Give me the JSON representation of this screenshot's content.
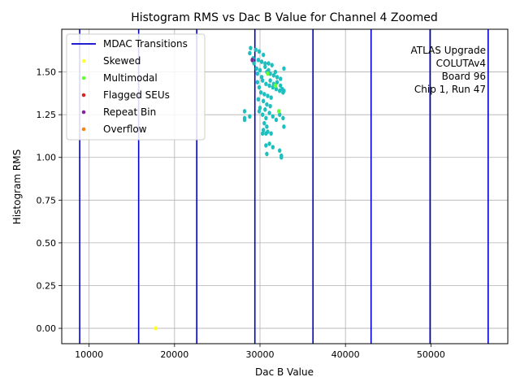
{
  "chart_data": {
    "type": "scatter",
    "title": "Histogram RMS vs Dac B Value for Channel 4 Zoomed",
    "xlabel": "Dac B Value",
    "ylabel": "Histogram RMS",
    "xlim": [
      6800,
      59000
    ],
    "ylim": [
      -0.09,
      1.75
    ],
    "x_ticks": [
      10000,
      20000,
      30000,
      40000,
      50000
    ],
    "x_tick_labels": [
      "10000",
      "20000",
      "30000",
      "40000",
      "50000"
    ],
    "y_ticks": [
      0.0,
      0.25,
      0.5,
      0.75,
      1.0,
      1.25,
      1.5
    ],
    "y_tick_labels": [
      "0.00",
      "0.25",
      "0.50",
      "0.75",
      "1.00",
      "1.25",
      "1.50"
    ],
    "grid": true,
    "legend_position": "top-left",
    "annotation": [
      "ATLAS Upgrade",
      "COLUTAv4",
      "Board 96",
      "Chip 1, Run 47"
    ],
    "mdac_transitions": {
      "name": "MDAC Transitions",
      "color": "#0000cc",
      "x": [
        8900,
        15800,
        22600,
        29400,
        36200,
        43000,
        49900,
        56700
      ]
    },
    "series": [
      {
        "name": "",
        "color": "#1fbfbf",
        "points": [
          [
            28900,
            1.64
          ],
          [
            29500,
            1.63
          ],
          [
            29900,
            1.62
          ],
          [
            30400,
            1.6
          ],
          [
            28800,
            1.61
          ],
          [
            29200,
            1.58
          ],
          [
            29800,
            1.57
          ],
          [
            30200,
            1.56
          ],
          [
            30600,
            1.55
          ],
          [
            31000,
            1.55
          ],
          [
            31400,
            1.54
          ],
          [
            29600,
            1.52
          ],
          [
            30000,
            1.51
          ],
          [
            30800,
            1.5
          ],
          [
            31200,
            1.49
          ],
          [
            31600,
            1.48
          ],
          [
            32000,
            1.47
          ],
          [
            32400,
            1.46
          ],
          [
            32800,
            1.52
          ],
          [
            30300,
            1.45
          ],
          [
            30700,
            1.43
          ],
          [
            31100,
            1.42
          ],
          [
            31500,
            1.41
          ],
          [
            31900,
            1.4
          ],
          [
            32300,
            1.39
          ],
          [
            32700,
            1.38
          ],
          [
            29700,
            1.44
          ],
          [
            29900,
            1.41
          ],
          [
            30100,
            1.38
          ],
          [
            30500,
            1.37
          ],
          [
            30900,
            1.36
          ],
          [
            31300,
            1.35
          ],
          [
            29800,
            1.34
          ],
          [
            30400,
            1.33
          ],
          [
            30800,
            1.31
          ],
          [
            31200,
            1.3
          ],
          [
            30600,
            1.28
          ],
          [
            30000,
            1.29
          ],
          [
            29900,
            1.27
          ],
          [
            30300,
            1.25
          ],
          [
            30700,
            1.23
          ],
          [
            31100,
            1.26
          ],
          [
            31500,
            1.24
          ],
          [
            31900,
            1.22
          ],
          [
            32300,
            1.25
          ],
          [
            32700,
            1.23
          ],
          [
            30500,
            1.2
          ],
          [
            30800,
            1.18
          ],
          [
            30400,
            1.16
          ],
          [
            30900,
            1.15
          ],
          [
            30300,
            1.14
          ],
          [
            30700,
            1.14
          ],
          [
            31300,
            1.14
          ],
          [
            32800,
            1.18
          ],
          [
            28200,
            1.27
          ],
          [
            28200,
            1.23
          ],
          [
            28200,
            1.22
          ],
          [
            28800,
            1.24
          ],
          [
            30700,
            1.07
          ],
          [
            31100,
            1.08
          ],
          [
            31500,
            1.06
          ],
          [
            32300,
            1.04
          ],
          [
            32500,
            1.01
          ],
          [
            32500,
            1.0
          ],
          [
            30800,
            1.02
          ],
          [
            31200,
            1.45
          ],
          [
            31600,
            1.43
          ],
          [
            32000,
            1.44
          ],
          [
            32400,
            1.42
          ],
          [
            32600,
            1.4
          ],
          [
            32800,
            1.39
          ],
          [
            30600,
            1.53
          ],
          [
            31000,
            1.51
          ],
          [
            31800,
            1.5
          ],
          [
            29300,
            1.55
          ],
          [
            29700,
            1.49
          ],
          [
            30200,
            1.47
          ]
        ]
      },
      {
        "name": "Skewed",
        "color": "#ffff33",
        "points": [
          [
            17800,
            0.0
          ]
        ]
      },
      {
        "name": "Multimodal",
        "color": "#66ff33",
        "points": [
          [
            30900,
            1.49
          ],
          [
            31800,
            1.42
          ],
          [
            32200,
            1.27
          ]
        ]
      },
      {
        "name": "Flagged SEUs",
        "color": "#dd2222",
        "points": []
      },
      {
        "name": "Repeat Bin",
        "color": "#882299",
        "points": [
          [
            29100,
            1.57
          ]
        ]
      },
      {
        "name": "Overflow",
        "color": "#ff7f0e",
        "points": []
      }
    ]
  }
}
